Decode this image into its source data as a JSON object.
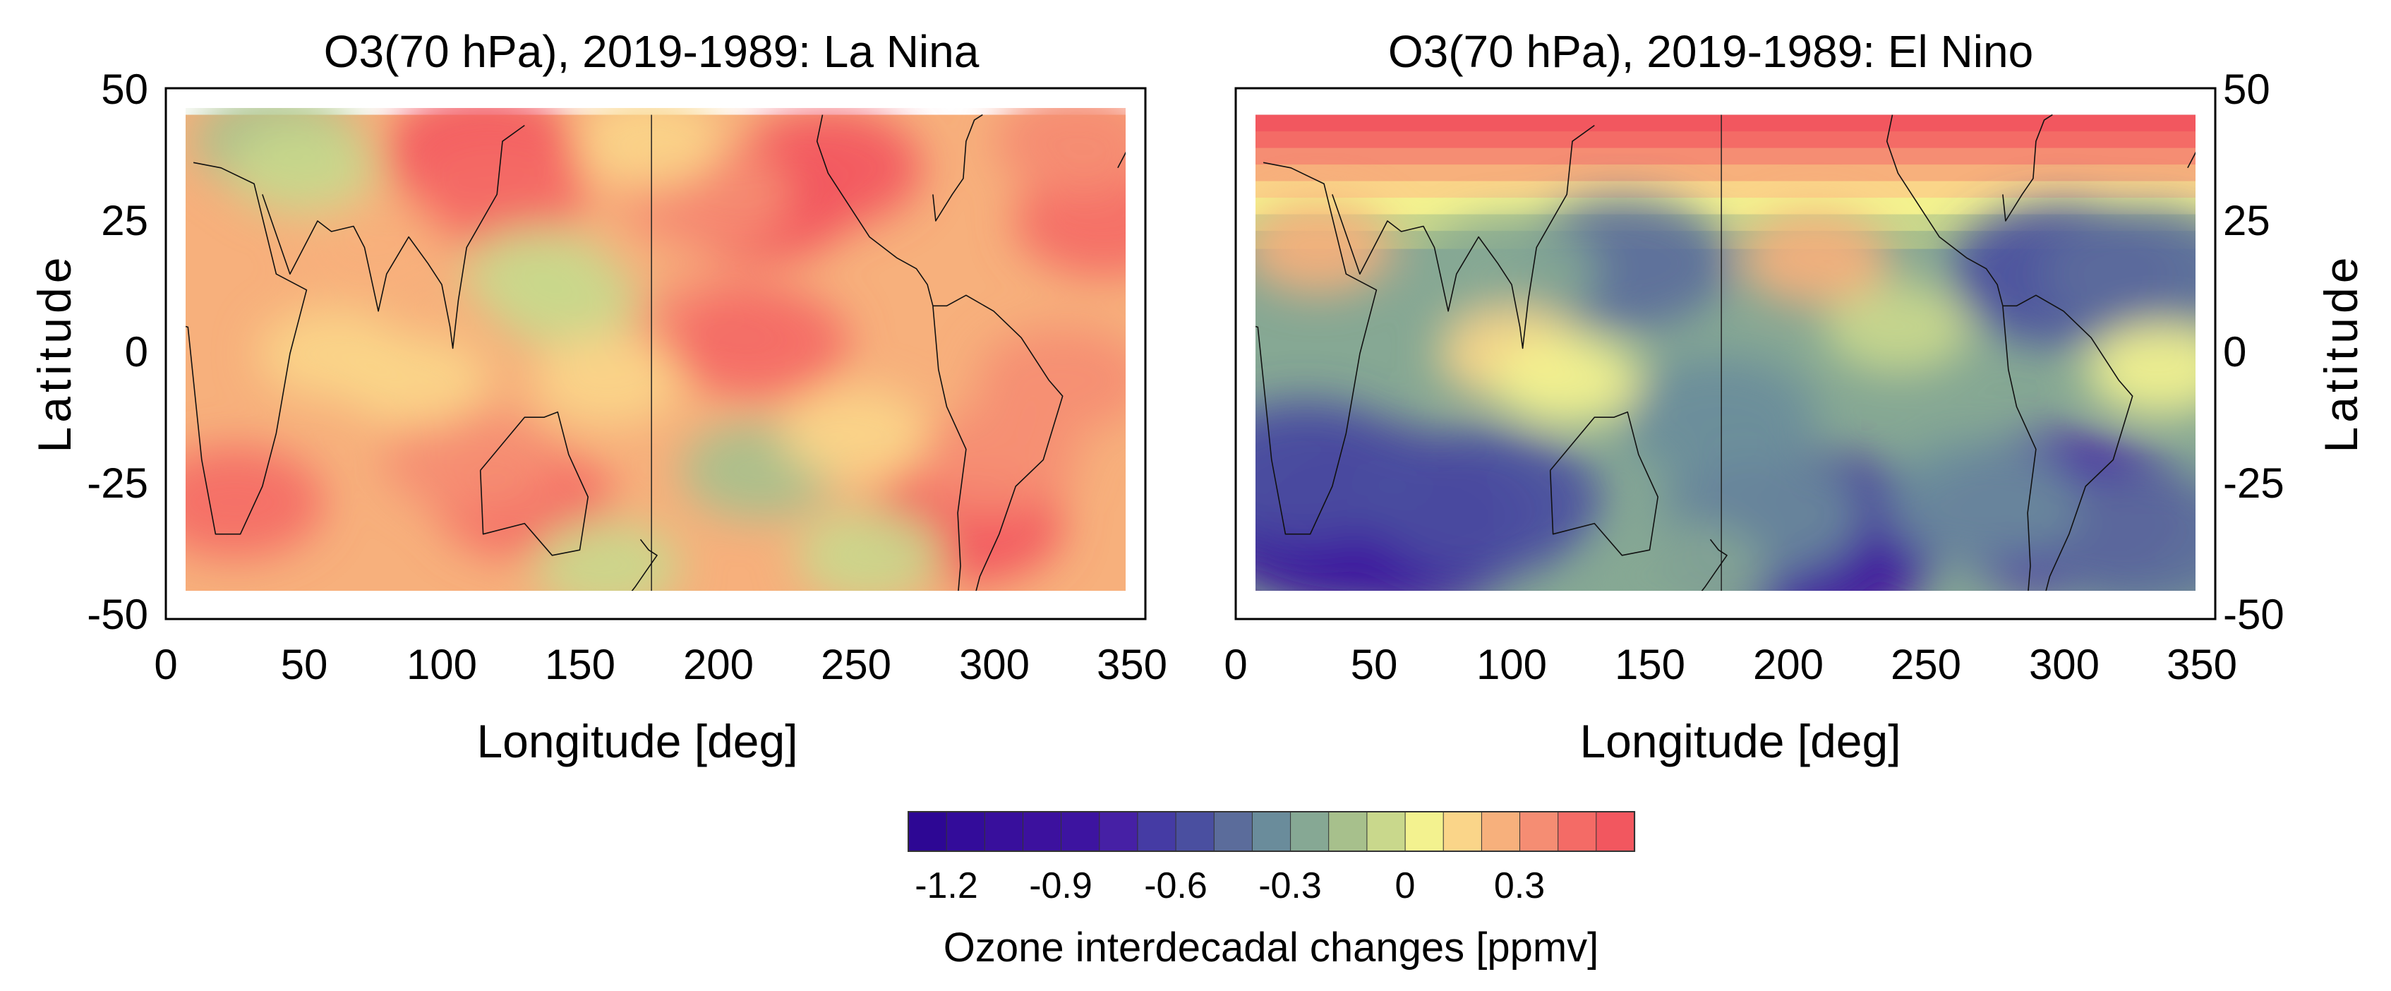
{
  "chart_data": [
    {
      "type": "heatmap",
      "title": "O3(70 hPa), 2019-1989: La Nina",
      "xlabel": "Longitude [deg]",
      "ylabel": "Latitude",
      "xlim": [
        0,
        355
      ],
      "ylim": [
        -50,
        50
      ],
      "data_lon_range": [
        7,
        348
      ],
      "data_lat_range": [
        -45,
        45
      ],
      "x_ticks": [
        "0",
        "50",
        "100",
        "150",
        "200",
        "250",
        "300",
        "350"
      ],
      "y_ticks": [
        "50",
        "25",
        "0",
        "-25",
        "-50"
      ],
      "ylabel_side": "left",
      "background": "#f7b07c",
      "blobs": [
        {
          "lon": 115,
          "lat": 38,
          "value": 0.45
        },
        {
          "lon": 120,
          "lat": 30,
          "value": 0.35
        },
        {
          "lon": 215,
          "lat": 28,
          "value": 0.4
        },
        {
          "lon": 240,
          "lat": 35,
          "value": 0.4
        },
        {
          "lon": 195,
          "lat": 30,
          "value": 0.3
        },
        {
          "lon": 340,
          "lat": 25,
          "value": 0.35
        },
        {
          "lon": 330,
          "lat": 40,
          "value": 0.25
        },
        {
          "lon": 200,
          "lat": 5,
          "value": 0.3
        },
        {
          "lon": 215,
          "lat": 2,
          "value": 0.35
        },
        {
          "lon": 25,
          "lat": -28,
          "value": 0.35
        },
        {
          "lon": 130,
          "lat": -28,
          "value": 0.35
        },
        {
          "lon": 110,
          "lat": -20,
          "value": 0.3
        },
        {
          "lon": 290,
          "lat": -32,
          "value": 0.45
        },
        {
          "lon": 300,
          "lat": -20,
          "value": 0.3
        },
        {
          "lon": 325,
          "lat": -5,
          "value": 0.3
        },
        {
          "lon": 330,
          "lat": 40,
          "value": 0.2
        },
        {
          "lon": 40,
          "lat": 40,
          "value": -0.25
        },
        {
          "lon": 50,
          "lat": 35,
          "value": -0.15
        },
        {
          "lon": 135,
          "lat": 15,
          "value": -0.15
        },
        {
          "lon": 145,
          "lat": 10,
          "value": -0.1
        },
        {
          "lon": 215,
          "lat": -22,
          "value": -0.2
        },
        {
          "lon": 160,
          "lat": -40,
          "value": -0.15
        },
        {
          "lon": 255,
          "lat": -38,
          "value": -0.1
        },
        {
          "lon": 75,
          "lat": 20,
          "value": 0.1
        },
        {
          "lon": 60,
          "lat": 0,
          "value": 0.05
        },
        {
          "lon": 90,
          "lat": -5,
          "value": 0.05
        },
        {
          "lon": 160,
          "lat": -5,
          "value": 0.05
        },
        {
          "lon": 250,
          "lat": -15,
          "value": 0.05
        },
        {
          "lon": 175,
          "lat": 40,
          "value": 0.05
        }
      ]
    },
    {
      "type": "heatmap",
      "title": "O3(70 hPa), 2019-1989: El Nino",
      "xlabel": "Longitude [deg]",
      "ylabel": "Latitude",
      "xlim": [
        0,
        355
      ],
      "ylim": [
        -50,
        50
      ],
      "data_lon_range": [
        7,
        348
      ],
      "data_lat_range": [
        -45,
        45
      ],
      "x_ticks": [
        "0",
        "50",
        "100",
        "150",
        "200",
        "250",
        "300",
        "350"
      ],
      "y_ticks": [
        "50",
        "25",
        "0",
        "-25",
        "-50"
      ],
      "ylabel_side": "right",
      "background": "#86a894",
      "blobs": [
        {
          "lon": 40,
          "lat": -30,
          "value": -1.1
        },
        {
          "lon": 60,
          "lat": -32,
          "value": -0.95
        },
        {
          "lon": 90,
          "lat": -28,
          "value": -0.7
        },
        {
          "lon": 25,
          "lat": -22,
          "value": -0.65
        },
        {
          "lon": 205,
          "lat": -35,
          "value": -1.0
        },
        {
          "lon": 190,
          "lat": -30,
          "value": -0.5
        },
        {
          "lon": 300,
          "lat": -30,
          "value": -0.85
        },
        {
          "lon": 330,
          "lat": -35,
          "value": -0.6
        },
        {
          "lon": 270,
          "lat": -28,
          "value": -0.45
        },
        {
          "lon": 140,
          "lat": 17,
          "value": -0.55
        },
        {
          "lon": 300,
          "lat": 15,
          "value": -0.65
        },
        {
          "lon": 330,
          "lat": 15,
          "value": -0.55
        },
        {
          "lon": 175,
          "lat": -12,
          "value": -0.45
        },
        {
          "lon": 100,
          "lat": 15,
          "value": -0.3
        },
        {
          "lon": 100,
          "lat": 0,
          "value": 0.05
        },
        {
          "lon": 120,
          "lat": -5,
          "value": 0.0
        },
        {
          "lon": 240,
          "lat": 5,
          "value": -0.1
        },
        {
          "lon": 335,
          "lat": -3,
          "value": -0.05
        },
        {
          "lon": 30,
          "lat": 20,
          "value": 0.1
        },
        {
          "lon": 210,
          "lat": 18,
          "value": 0.15
        },
        {
          "lon": 160,
          "lat": -42,
          "value": -0.35
        }
      ],
      "lat_gradient": {
        "north_lat": 45,
        "north_value": 0.5,
        "south_lat": 20,
        "south_value": -0.3
      }
    }
  ],
  "colorbar": {
    "label": "Ozone interdecadal changes [ppmv]",
    "tick_labels": [
      "-1.2",
      "-0.9",
      "-0.6",
      "-0.3",
      "0",
      "0.3"
    ],
    "tick_values": [
      -1.2,
      -0.9,
      -0.6,
      -0.3,
      0,
      0.3
    ],
    "levels": [
      -1.35,
      -1.25,
      -1.15,
      -1.05,
      -0.95,
      -0.85,
      -0.75,
      -0.65,
      -0.55,
      -0.45,
      -0.35,
      -0.25,
      -0.15,
      -0.05,
      0.05,
      0.15,
      0.25,
      0.35,
      0.45
    ],
    "colors": [
      "#2d0794",
      "#330c9a",
      "#380f9c",
      "#3c119e",
      "#3d14a0",
      "#4620a5",
      "#453ba4",
      "#4a4fa0",
      "#5b6c9b",
      "#6a8c9b",
      "#86a894",
      "#a7c08c",
      "#c9d88c",
      "#f3f28f",
      "#fad589",
      "#f7b07c",
      "#f58d73",
      "#f46b66",
      "#f2575f"
    ]
  }
}
